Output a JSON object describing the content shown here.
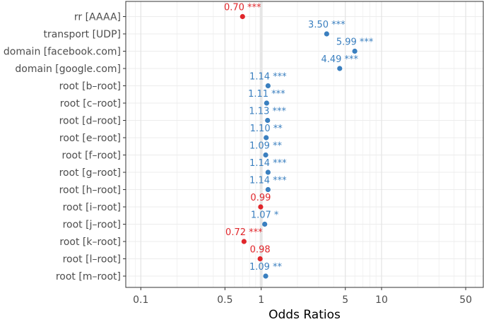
{
  "chart_data": {
    "type": "forest",
    "xlabel": "Odds Ratios",
    "xscale": "log",
    "xlim": [
      0.075,
      70
    ],
    "xticks": [
      {
        "value": 0.1,
        "label": "0.1"
      },
      {
        "value": 0.5,
        "label": "0.5"
      },
      {
        "value": 1,
        "label": "1"
      },
      {
        "value": 5,
        "label": "5"
      },
      {
        "value": 10,
        "label": "10"
      },
      {
        "value": 50,
        "label": "50"
      }
    ],
    "reference_line": 1,
    "grid": true,
    "colors": {
      "positive": "#3a7fbf",
      "negative": "#e0262b"
    },
    "rows": [
      {
        "term": "rr [AAAA]",
        "or": 0.7,
        "label": "0.70 ***",
        "direction": "negative"
      },
      {
        "term": "transport [UDP]",
        "or": 3.5,
        "label": "3.50 ***",
        "direction": "positive"
      },
      {
        "term": "domain [facebook.com]",
        "or": 5.99,
        "label": "5.99 ***",
        "direction": "positive"
      },
      {
        "term": "domain [google.com]",
        "or": 4.49,
        "label": "4.49 ***",
        "direction": "positive"
      },
      {
        "term": "root [b–root]",
        "or": 1.14,
        "label": "1.14 ***",
        "direction": "positive"
      },
      {
        "term": "root [c–root]",
        "or": 1.11,
        "label": "1.11 ***",
        "direction": "positive"
      },
      {
        "term": "root [d–root]",
        "or": 1.13,
        "label": "1.13 ***",
        "direction": "positive"
      },
      {
        "term": "root [e–root]",
        "or": 1.1,
        "label": "1.10 **",
        "direction": "positive"
      },
      {
        "term": "root [f–root]",
        "or": 1.09,
        "label": "1.09 **",
        "direction": "positive"
      },
      {
        "term": "root [g–root]",
        "or": 1.14,
        "label": "1.14 ***",
        "direction": "positive"
      },
      {
        "term": "root [h–root]",
        "or": 1.14,
        "label": "1.14 ***",
        "direction": "positive"
      },
      {
        "term": "root [i–root]",
        "or": 0.99,
        "label": "0.99",
        "direction": "negative"
      },
      {
        "term": "root [j–root]",
        "or": 1.07,
        "label": "1.07 *",
        "direction": "positive"
      },
      {
        "term": "root [k–root]",
        "or": 0.72,
        "label": "0.72 ***",
        "direction": "negative"
      },
      {
        "term": "root [l–root]",
        "or": 0.98,
        "label": "0.98",
        "direction": "negative"
      },
      {
        "term": "root [m–root]",
        "or": 1.09,
        "label": "1.09 **",
        "direction": "positive"
      }
    ]
  }
}
